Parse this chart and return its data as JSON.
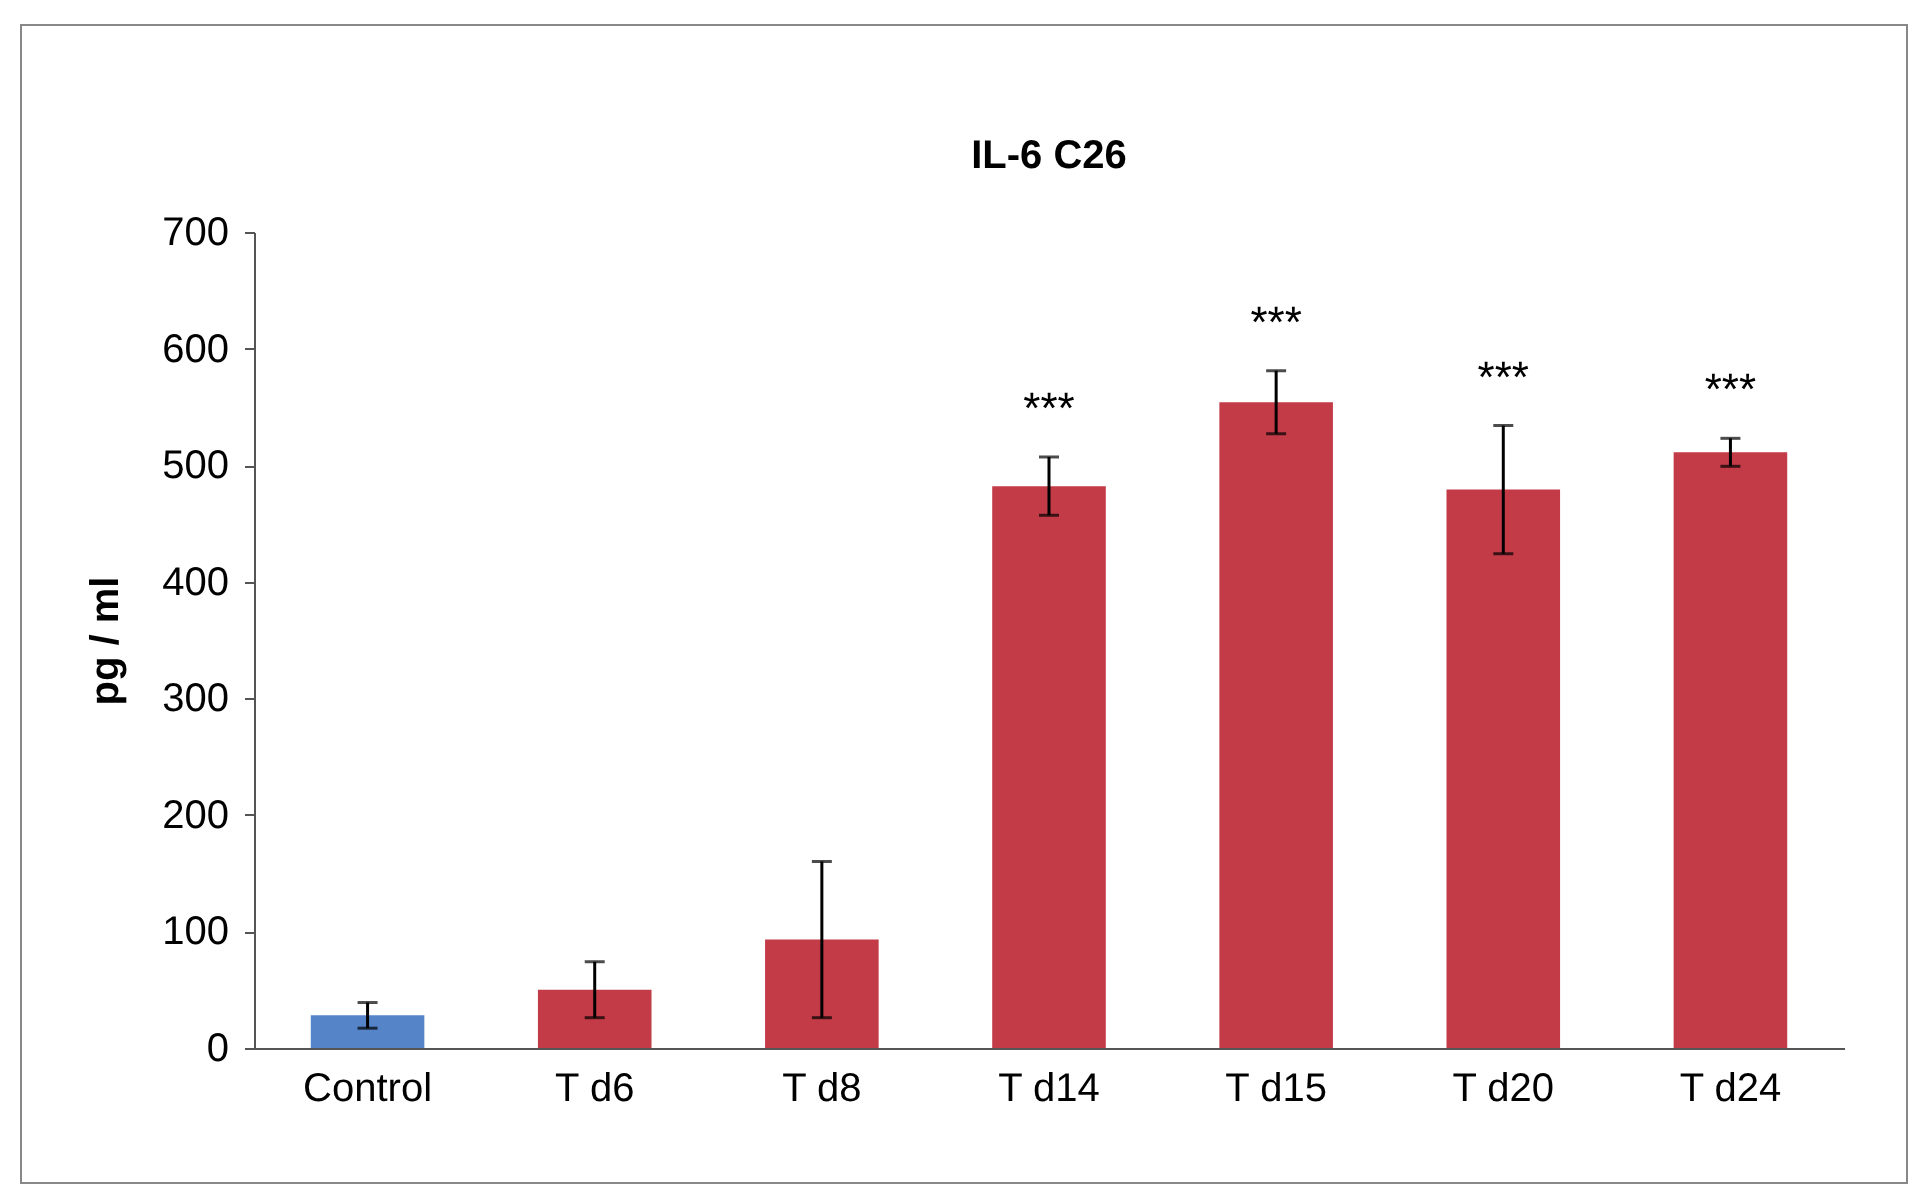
{
  "chart_data": {
    "type": "bar",
    "title": "IL-6 C26",
    "ylabel": "pg / ml",
    "categories": [
      "Control",
      "T d6",
      "T d8",
      "T d14",
      "T d15",
      "T d20",
      "T d24"
    ],
    "values": [
      28,
      50,
      93,
      482,
      554,
      479,
      511
    ],
    "errors": [
      11,
      24,
      67,
      25,
      27,
      55,
      12
    ],
    "colors": [
      "#5585c8",
      "#c23b47",
      "#c23b47",
      "#c23b47",
      "#c23b47",
      "#c23b47",
      "#c23b47"
    ],
    "ylim": [
      0,
      700
    ],
    "yticks": [
      0,
      100,
      200,
      300,
      400,
      500,
      600,
      700
    ],
    "grid": false,
    "value_labels": [
      null,
      null,
      null,
      "***",
      "***",
      "***",
      "***"
    ]
  }
}
